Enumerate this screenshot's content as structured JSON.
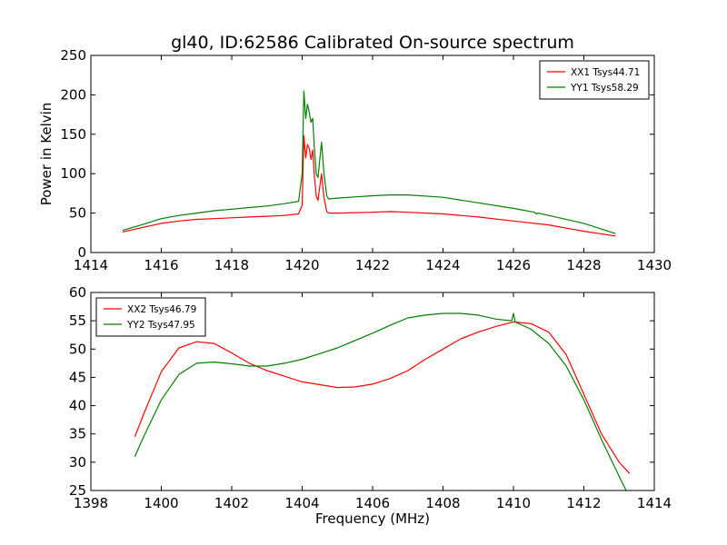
{
  "figure": {
    "title": "gl40, ID:62586 Calibrated On-source spectrum"
  },
  "chart_data": [
    {
      "type": "line",
      "title": "gl40, ID:62586 Calibrated On-source spectrum",
      "xlabel": "",
      "ylabel": "Power in Kelvin",
      "xlim": [
        1414,
        1430
      ],
      "ylim": [
        0,
        250
      ],
      "xticks": [
        "1414",
        "1416",
        "1418",
        "1420",
        "1422",
        "1424",
        "1426",
        "1428",
        "1430"
      ],
      "yticks": [
        "0",
        "50",
        "100",
        "150",
        "200",
        "250"
      ],
      "grid": false,
      "legend_position": "top-right",
      "series": [
        {
          "name": "XX1 Tsys44.71",
          "color": "#ff0000",
          "x": [
            1414.9,
            1415.5,
            1416.0,
            1416.5,
            1417.0,
            1417.5,
            1418.0,
            1418.5,
            1419.0,
            1419.5,
            1419.9,
            1420.0,
            1420.05,
            1420.1,
            1420.15,
            1420.2,
            1420.25,
            1420.3,
            1420.35,
            1420.4,
            1420.45,
            1420.55,
            1420.62,
            1420.7,
            1420.75,
            1421.0,
            1422.0,
            1422.5,
            1423.0,
            1424.0,
            1425.0,
            1426.0,
            1427.0,
            1428.0,
            1428.9
          ],
          "y": [
            26,
            32,
            37,
            40,
            42,
            43,
            44,
            45,
            46,
            47,
            49,
            60,
            148,
            120,
            137,
            132,
            118,
            130,
            95,
            72,
            66,
            100,
            70,
            52,
            50,
            50,
            51,
            52,
            51,
            49,
            45,
            40,
            35,
            27,
            21
          ]
        },
        {
          "name": "YY1 Tsys58.29",
          "color": "#008000",
          "x": [
            1414.9,
            1415.5,
            1416.0,
            1416.5,
            1417.0,
            1417.5,
            1418.0,
            1418.5,
            1419.0,
            1419.5,
            1419.9,
            1420.0,
            1420.05,
            1420.1,
            1420.15,
            1420.2,
            1420.25,
            1420.3,
            1420.35,
            1420.4,
            1420.45,
            1420.55,
            1420.62,
            1420.7,
            1420.75,
            1421.0,
            1422.0,
            1422.5,
            1423.0,
            1424.0,
            1425.0,
            1426.0,
            1426.6,
            1426.65,
            1426.7,
            1427.0,
            1428.0,
            1428.9
          ],
          "y": [
            28,
            36,
            43,
            47,
            50,
            53,
            55,
            57,
            59,
            62,
            65,
            100,
            205,
            170,
            188,
            178,
            165,
            170,
            130,
            100,
            95,
            140,
            100,
            72,
            68,
            69,
            72,
            73,
            73,
            70,
            63,
            56,
            51,
            49,
            50,
            47,
            37,
            24
          ]
        }
      ]
    },
    {
      "type": "line",
      "title": "",
      "xlabel": "Frequency (MHz)",
      "ylabel": "",
      "xlim": [
        1398,
        1414
      ],
      "ylim": [
        25,
        60
      ],
      "xticks": [
        "1398",
        "1400",
        "1402",
        "1404",
        "1406",
        "1408",
        "1410",
        "1412",
        "1414"
      ],
      "yticks": [
        "25",
        "30",
        "35",
        "40",
        "45",
        "50",
        "55",
        "60"
      ],
      "grid": false,
      "legend_position": "top-left",
      "series": [
        {
          "name": "XX2 Tsys46.79",
          "color": "#ff0000",
          "x": [
            1399.25,
            1399.5,
            1400.0,
            1400.5,
            1401.0,
            1401.5,
            1402.0,
            1402.5,
            1403.0,
            1403.5,
            1404.0,
            1404.5,
            1405.0,
            1405.5,
            1406.0,
            1406.5,
            1407.0,
            1407.5,
            1408.0,
            1408.5,
            1409.0,
            1409.5,
            1410.0,
            1410.5,
            1411.0,
            1411.5,
            1412.0,
            1412.5,
            1413.0,
            1413.3
          ],
          "y": [
            34.5,
            38.5,
            46,
            50.2,
            51.3,
            51,
            49.3,
            47.5,
            46.2,
            45.2,
            44.2,
            43.7,
            43.2,
            43.3,
            43.8,
            44.8,
            46.2,
            48.2,
            50,
            51.8,
            53,
            54,
            54.8,
            54.5,
            53,
            49,
            42,
            35,
            30,
            28
          ]
        },
        {
          "name": "YY2 Tsys47.95",
          "color": "#008000",
          "x": [
            1399.25,
            1399.5,
            1400.0,
            1400.5,
            1401.0,
            1401.5,
            1402.0,
            1402.5,
            1403.0,
            1403.5,
            1404.0,
            1404.5,
            1405.0,
            1405.5,
            1406.0,
            1406.5,
            1407.0,
            1407.5,
            1408.0,
            1408.5,
            1409.0,
            1409.5,
            1409.95,
            1410.0,
            1410.05,
            1410.5,
            1411.0,
            1411.5,
            1412.0,
            1412.5,
            1413.0,
            1413.2
          ],
          "y": [
            31,
            34.5,
            41,
            45.5,
            47.5,
            47.7,
            47.4,
            47,
            47,
            47.5,
            48.2,
            49.2,
            50.2,
            51.5,
            52.8,
            54.2,
            55.5,
            56,
            56.3,
            56.3,
            56,
            55.3,
            55,
            56.3,
            54.8,
            53.5,
            51,
            47,
            41,
            34,
            27.5,
            25
          ]
        }
      ]
    }
  ]
}
